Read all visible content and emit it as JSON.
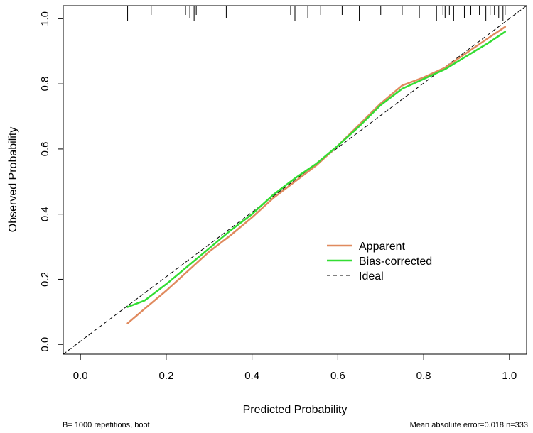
{
  "chart_data": {
    "type": "line",
    "title": "",
    "xlabel": "Predicted Probability",
    "ylabel": "Observed Probability",
    "xlim": [
      -0.04,
      1.04
    ],
    "ylim": [
      -0.03,
      1.04
    ],
    "xticks": [
      0.0,
      0.2,
      0.4,
      0.6,
      0.8,
      1.0
    ],
    "yticks": [
      0.0,
      0.2,
      0.4,
      0.6,
      0.8,
      1.0
    ],
    "xtick_labels": [
      "0.0",
      "0.2",
      "0.4",
      "0.6",
      "0.8",
      "1.0"
    ],
    "ytick_labels": [
      "0.0",
      "0.2",
      "0.4",
      "0.6",
      "0.8",
      "1.0"
    ],
    "grid": false,
    "legend_position": "center-right",
    "series": [
      {
        "name": "Apparent",
        "color": "#E08A5E",
        "style": "solid",
        "x": [
          0.11,
          0.15,
          0.2,
          0.25,
          0.3,
          0.35,
          0.4,
          0.45,
          0.5,
          0.55,
          0.6,
          0.65,
          0.7,
          0.75,
          0.8,
          0.85,
          0.9,
          0.95,
          0.99
        ],
        "y": [
          0.065,
          0.11,
          0.165,
          0.225,
          0.285,
          0.335,
          0.39,
          0.45,
          0.5,
          0.55,
          0.61,
          0.675,
          0.74,
          0.795,
          0.82,
          0.85,
          0.895,
          0.94,
          0.975
        ]
      },
      {
        "name": "Bias-corrected",
        "color": "#33DD33",
        "style": "solid",
        "x": [
          0.11,
          0.15,
          0.2,
          0.25,
          0.3,
          0.35,
          0.4,
          0.45,
          0.5,
          0.55,
          0.6,
          0.65,
          0.7,
          0.75,
          0.8,
          0.85,
          0.9,
          0.95,
          0.99
        ],
        "y": [
          0.115,
          0.135,
          0.185,
          0.24,
          0.295,
          0.35,
          0.4,
          0.46,
          0.51,
          0.555,
          0.61,
          0.67,
          0.735,
          0.785,
          0.815,
          0.845,
          0.885,
          0.925,
          0.96
        ]
      },
      {
        "name": "Ideal",
        "color": "#000000",
        "style": "dashed",
        "x": [
          -0.04,
          1.04
        ],
        "y": [
          -0.04,
          1.04
        ]
      }
    ],
    "rug_x": [
      0.11,
      0.165,
      0.245,
      0.255,
      0.265,
      0.27,
      0.34,
      0.49,
      0.5,
      0.53,
      0.56,
      0.61,
      0.65,
      0.7,
      0.75,
      0.79,
      0.83,
      0.845,
      0.85,
      0.86,
      0.87,
      0.895,
      0.91,
      0.93,
      0.945,
      0.955,
      0.965,
      0.975,
      0.985,
      0.99
    ],
    "footer_left": "B= 1000 repetitions, boot",
    "footer_right": "Mean absolute error=0.018 n=333"
  }
}
